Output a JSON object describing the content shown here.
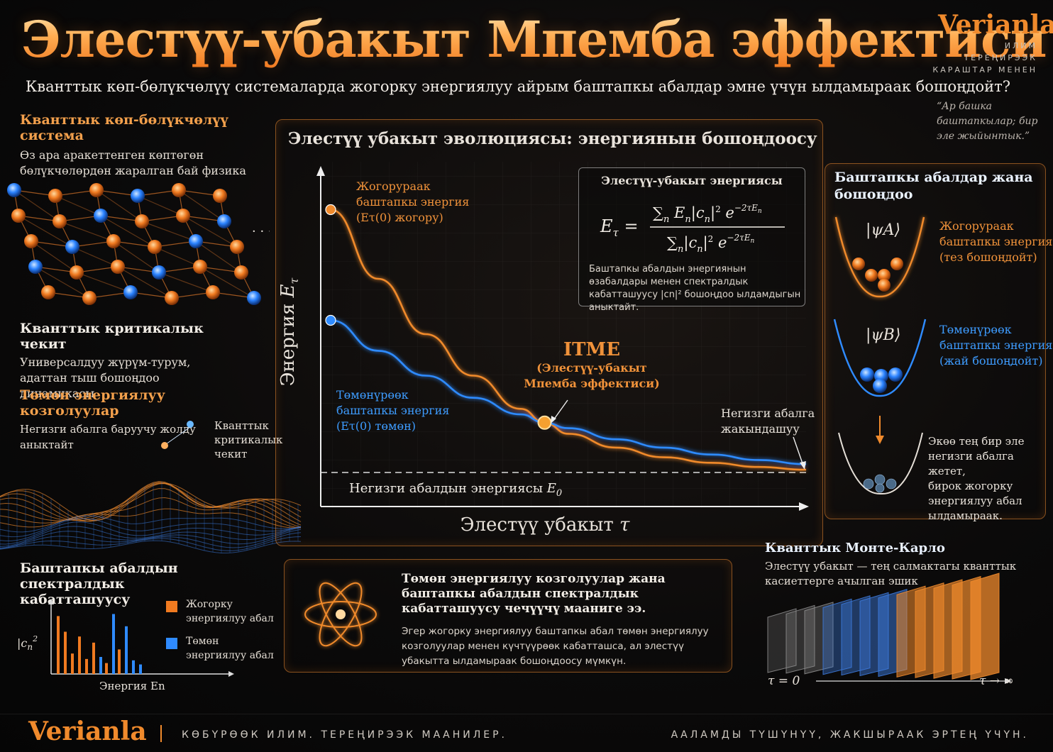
{
  "header": {
    "title": "Элестүү-убакыт Мпемба эффектиси",
    "subtitle": "Кванттык көп-бөлүкчөлүү системаларда жогорку энергиялуу айрым баштапкы абалдар эмне үчүн ылдамыраак бошоңдойт?",
    "brand": "Verianla",
    "brand_tagline": [
      "ИЛИМ",
      "ТЕРЕҢИРЭЭК",
      "КАРАШТАР МЕНЕН"
    ],
    "quote": "“Ар башка баштапкылар; бир эле жыйынтык.”"
  },
  "left": {
    "many_body": {
      "heading": "Кванттык көп-бөлүкчөлүү система",
      "text": "Өз ара аракеттенген көптөгөн бөлүкчөлөрдөн жаралган бай физика"
    },
    "critical": {
      "heading": "Кванттык критикалык чекит",
      "text": "Универсалдуу жүрүм-турум, адаттан тыш бошоңдоо динамикасы"
    },
    "low_energy": {
      "heading": "Төмөн энергиялуу козголуулар",
      "text": "Негизги абалга баруучу жолду аныктайт",
      "peak_label": "Кванттык критикалык чекит"
    },
    "spectral": {
      "heading": "Баштапкы абалдын спектралдык кабатташуусу",
      "ylabel": "|cn|²",
      "xlabel": "Энергия En",
      "legend_high": "Жогорку энергиялуу абал",
      "legend_low": "Төмөн энергиялуу абал"
    }
  },
  "main_chart": {
    "heading": "Элестүү убакыт эволюциясы: энергиянын бошоңдоосу",
    "ylabel": "Энергия Eτ",
    "xlabel": "Элестүү убакыт τ",
    "high_label": [
      "Жогорураак",
      "баштапкы энергия",
      "(Eτ(0) жогору)"
    ],
    "low_label": [
      "Төмөнүрөөк",
      "баштапкы энергия",
      "(Eτ(0) төмөн)"
    ],
    "itme_title": "ITME",
    "itme_sub": [
      "(Элестүү-убакыт",
      "Мпемба эффектиси)"
    ],
    "approach": [
      "Негизги абалга",
      "жакындашуу"
    ],
    "ground_label": "Негизги абалдын энергиясы E0",
    "formula_title": "Элестүү-убакыт энергиясы",
    "formula_note": "Баштапкы абалдын энергиянын өзабалдары менен спектралдык кабатташуусу |cn|² бошоңдоо ылдамдыгын аныктайт."
  },
  "states_panel": {
    "heading": "Баштапкы абалдар жана бошоңдоо",
    "psi_a": "|ψA⟩",
    "psi_b": "|ψB⟩",
    "a_label": [
      "Жогорураак",
      "баштапкы энергия",
      "(тез бошоңдойт)"
    ],
    "b_label": [
      "Төмөнүрөөк",
      "баштапкы энергия",
      "(жай бошоңдойт)"
    ],
    "final_label": [
      "Экөө тең бир эле",
      "негизги абалга жетет,",
      "бирок жогорку",
      "энергиялуу абал",
      "ылдамыраак."
    ]
  },
  "why": {
    "heading": "Төмөн энергиялуу козголуулар жана баштапкы абалдын спектралдык кабатташуусу чечүүчү мааниге ээ.",
    "text": "Эгер жогорку энергиялуу баштапкы абал төмөн энергиялуу козголуулар менен күчтүүрөөк кабатташса, ал элестүү убакытта ылдамыраак бошоңдоосу мүмкүн."
  },
  "qmc": {
    "heading": "Кванттык Монте-Карло",
    "text": "Элестүү убакыт — тең салмактагы кванттык касиеттерге ачылган эшик",
    "start": "τ = 0",
    "end": "τ → ∞"
  },
  "footer": {
    "brand": "Verianla",
    "left": "КӨБҮРӨӨК ИЛИМ. ТЕРЕҢИРЭЭК МААНИЛЕР.",
    "right": "ААЛАМДЫ ТҮШҮНҮҮ, ЖАКШЫРААК ЭРТЕҢ ҮЧҮН."
  },
  "colors": {
    "orange": "#f08a2c",
    "blue": "#2f8bff",
    "background": "#0b0a0a"
  },
  "chart_data": {
    "type": "line",
    "title": "Элестүү убакыт эволюциясы: энергиянын бошоңдоосу",
    "xlabel": "Элестүү убакыт τ",
    "ylabel": "Энергия Eτ",
    "series": [
      {
        "name": "Жогорураак баштапкы энергия",
        "color": "#f08a2c",
        "x": [
          0,
          0.1,
          0.2,
          0.3,
          0.4,
          0.45,
          0.5,
          0.6,
          0.7,
          0.8,
          0.9,
          1.0
        ],
        "y": [
          0.95,
          0.7,
          0.5,
          0.35,
          0.23,
          0.18,
          0.14,
          0.09,
          0.055,
          0.035,
          0.02,
          0.01
        ]
      },
      {
        "name": "Төмөнүрөөк баштапкы энергия",
        "color": "#2f8bff",
        "x": [
          0,
          0.1,
          0.2,
          0.3,
          0.4,
          0.45,
          0.5,
          0.6,
          0.7,
          0.8,
          0.9,
          1.0
        ],
        "y": [
          0.55,
          0.44,
          0.35,
          0.27,
          0.21,
          0.18,
          0.16,
          0.12,
          0.09,
          0.065,
          0.045,
          0.03
        ]
      }
    ],
    "crossing": {
      "x": 0.45,
      "y": 0.18,
      "label": "ITME"
    },
    "ground_energy": 0
  }
}
